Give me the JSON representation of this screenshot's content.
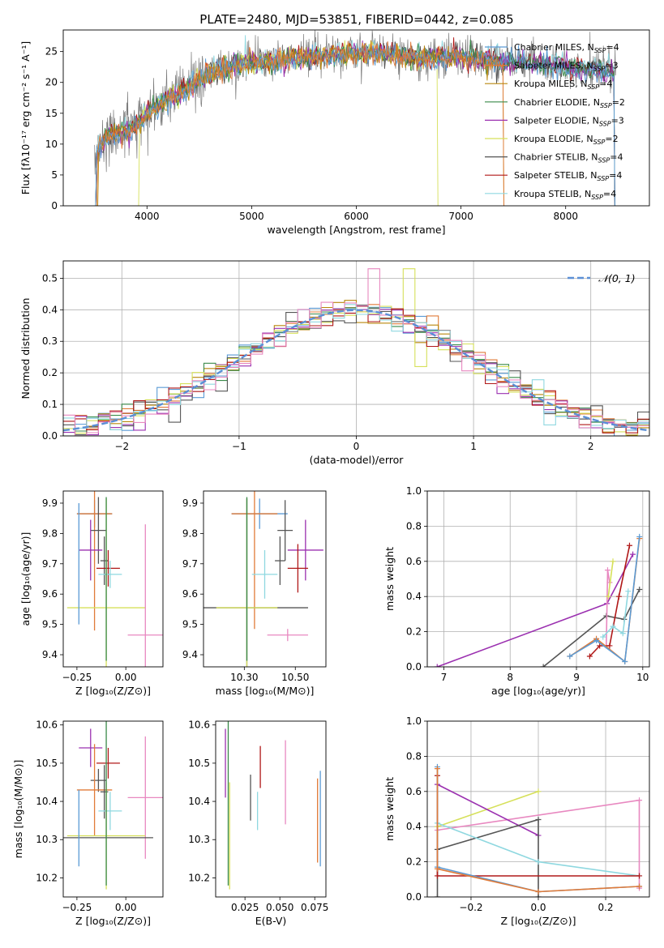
{
  "figure": {
    "title": "PLATE=2480, MJD=53851, FIBERID=0442, z=0.085"
  },
  "palette": {
    "Chabrier MILES": "#5b9bd5",
    "Salpeter MILES": "#e07b39",
    "Kroupa MILES": "#b8860b",
    "Chabrier ELODIE": "#3a8a4a",
    "Salpeter ELODIE": "#9b30b0",
    "Kroupa ELODIE": "#d6e05a",
    "Chabrier STELIB": "#555555",
    "Salpeter STELIB": "#b01818",
    "Kroupa STELIB": "#8fd8e0",
    "extra_pink": "#e888c0",
    "extra_orange": "#d2823a",
    "normal_curve": "#5b8fd5"
  },
  "chart_data": [
    {
      "id": "spectrum",
      "type": "line",
      "xlabel": "wavelength [Angstrom, rest frame]",
      "ylabel": "Flux [fλ10⁻¹⁷ erg cm⁻² s⁻¹ A⁻¹]",
      "xlim": [
        3200,
        8800
      ],
      "ylim": [
        0,
        28.5
      ],
      "xticks": [
        4000,
        5000,
        6000,
        7000,
        8000
      ],
      "yticks": [
        0,
        5,
        10,
        15,
        20,
        25
      ],
      "legend_position": "top-right",
      "continuum": {
        "x": [
          3500,
          3600,
          3700,
          3800,
          3900,
          4000,
          4100,
          4200,
          4300,
          4400,
          4500,
          4600,
          4700,
          4800,
          4900,
          5000,
          5200,
          5400,
          5600,
          5800,
          6000,
          6200,
          6400,
          6600,
          6800,
          7000,
          7200,
          7400,
          7600,
          7800,
          8000,
          8200,
          8400,
          8500
        ],
        "y": [
          8,
          11,
          12,
          12,
          13,
          15,
          16,
          17.5,
          18,
          19.5,
          20.5,
          21.5,
          22,
          22.5,
          23,
          23.2,
          23.5,
          24,
          24.3,
          24.6,
          24.8,
          24.7,
          24.5,
          24,
          24.2,
          24.3,
          23.8,
          23.5,
          23.2,
          23,
          22.7,
          22.3,
          21.8,
          21.5
        ]
      },
      "series": [
        {
          "name": "Chabrier MILES, N$_{SSP}$=4",
          "label_main": "Chabrier MILES, N",
          "label_sub": "SSP",
          "label_end": "=4"
        },
        {
          "name": "Salpeter MILES, N$_{SSP}$=3",
          "label_main": "Salpeter MILES, N",
          "label_sub": "SSP",
          "label_end": "=3"
        },
        {
          "name": "Kroupa MILES, N$_{SSP}$=4",
          "label_main": "Kroupa MILES, N",
          "label_sub": "SSP",
          "label_end": "=4"
        },
        {
          "name": "Chabrier ELODIE, N$_{SSP}$=2",
          "label_main": "Chabrier ELODIE, N",
          "label_sub": "SSP",
          "label_end": "=2"
        },
        {
          "name": "Salpeter ELODIE, N$_{SSP}$=3",
          "label_main": "Salpeter ELODIE, N",
          "label_sub": "SSP",
          "label_end": "=3"
        },
        {
          "name": "Kroupa ELODIE, N$_{SSP}$=2",
          "label_main": "Kroupa ELODIE, N",
          "label_sub": "SSP",
          "label_end": "=2"
        },
        {
          "name": "Chabrier STELIB, N$_{SSP}$=4",
          "label_main": "Chabrier STELIB, N",
          "label_sub": "SSP",
          "label_end": "=4"
        },
        {
          "name": "Salpeter STELIB, N$_{SSP}$=4",
          "label_main": "Salpeter STELIB, N",
          "label_sub": "SSP",
          "label_end": "=4"
        },
        {
          "name": "Kroupa STELIB, N$_{SSP}$=4",
          "label_main": "Kroupa STELIB, N",
          "label_sub": "SSP",
          "label_end": "=4"
        }
      ]
    },
    {
      "id": "residuals",
      "type": "histogram",
      "xlabel": "(data-model)/error",
      "ylabel": "Normed distribution",
      "xlim": [
        -2.5,
        2.5
      ],
      "ylim": [
        0,
        0.555
      ],
      "xticks": [
        -2,
        -1,
        0,
        1,
        2
      ],
      "yticks": [
        0.0,
        0.1,
        0.2,
        0.3,
        0.4,
        0.5
      ],
      "grid": true,
      "legend_position": "top-right",
      "legend_label": "𝒩(0, 1)",
      "bin_width": 0.1
    },
    {
      "id": "age_vs_Z",
      "type": "errorbar",
      "xlabel": "Z [log₁₀(Z/Z⊙)]",
      "ylabel": "age  [log₁₀(age/yr)]",
      "xlim": [
        -0.32,
        0.19
      ],
      "ylim": [
        9.36,
        9.94
      ],
      "xticks": [
        -0.25,
        0.0
      ],
      "yticks": [
        9.4,
        9.5,
        9.6,
        9.7,
        9.8,
        9.9
      ],
      "points": [
        {
          "color": "#5b9bd5",
          "x": -0.16,
          "xerr": 0.09,
          "y": 9.865,
          "yerr": 0.045
        },
        {
          "color": "#e07b39",
          "x": -0.16,
          "xerr": 0.09,
          "y": 9.865,
          "yerr": 0.385
        },
        {
          "color": "#555555",
          "x": -0.14,
          "xerr": 0.04,
          "y": 9.81,
          "yerr": 0.11
        },
        {
          "color": "#9b30b0",
          "x": -0.18,
          "xerr": 0.06,
          "y": 9.745,
          "yerr": 0.1
        },
        {
          "color": "#555555",
          "x": -0.11,
          "xerr": 0.02,
          "y": 9.71,
          "yerr": 0.08
        },
        {
          "color": "#b01818",
          "x": -0.09,
          "xerr": 0.06,
          "y": 9.685,
          "yerr": 0.06
        },
        {
          "color": "#8fd8e0",
          "x": -0.08,
          "xerr": 0.06,
          "y": 9.665,
          "yerr": 0.045
        },
        {
          "color": "#d6e05a",
          "x": -0.1,
          "xerr": 0.2,
          "y": 9.555,
          "yerr": 0.36
        },
        {
          "color": "#e888c0",
          "x": 0.1,
          "xerr": 0.09,
          "y": 9.465,
          "yerr": 0.365
        },
        {
          "color": "#3a8a4a",
          "x": -0.1,
          "xerr": 0.0,
          "y": 9.65,
          "yerr": 0.27
        },
        {
          "color": "#5b9bd5",
          "x": -0.24,
          "xerr": 0.0,
          "y": 9.7,
          "yerr": 0.2
        }
      ]
    },
    {
      "id": "age_vs_mass",
      "type": "errorbar",
      "xlabel": "mass [log₁₀(M/M⊙)]",
      "xlim": [
        10.14,
        10.62
      ],
      "ylim": [
        9.36,
        9.94
      ],
      "xticks": [
        10.3,
        10.5
      ],
      "yticks": [
        9.4,
        9.5,
        9.6,
        9.7,
        9.8,
        9.9
      ],
      "points": [
        {
          "color": "#5b9bd5",
          "x": 10.36,
          "xerr": 0.11,
          "y": 9.865,
          "yerr": 0.05
        },
        {
          "color": "#e07b39",
          "x": 10.34,
          "xerr": 0.09,
          "y": 9.865,
          "yerr": 0.38
        },
        {
          "color": "#555555",
          "x": 10.46,
          "xerr": 0.03,
          "y": 9.81,
          "yerr": 0.1
        },
        {
          "color": "#9b30b0",
          "x": 10.54,
          "xerr": 0.07,
          "y": 9.745,
          "yerr": 0.1
        },
        {
          "color": "#555555",
          "x": 10.44,
          "xerr": 0.02,
          "y": 9.71,
          "yerr": 0.08
        },
        {
          "color": "#b01818",
          "x": 10.51,
          "xerr": 0.04,
          "y": 9.685,
          "yerr": 0.08
        },
        {
          "color": "#8fd8e0",
          "x": 10.38,
          "xerr": 0.05,
          "y": 9.665,
          "yerr": 0.08
        },
        {
          "color": "#555555",
          "x": 10.31,
          "xerr": 0.24,
          "y": 9.555,
          "yerr": 0.36
        },
        {
          "color": "#d6e05a",
          "x": 10.31,
          "xerr": 0.12,
          "y": 9.555,
          "yerr": 0.36
        },
        {
          "color": "#e888c0",
          "x": 10.47,
          "xerr": 0.08,
          "y": 9.465,
          "yerr": 0.02
        },
        {
          "color": "#3a8a4a",
          "x": 10.31,
          "xerr": 0.0,
          "y": 9.65,
          "yerr": 0.27
        }
      ]
    },
    {
      "id": "weight_vs_age",
      "type": "line",
      "xlabel": "age  [log₁₀(age/yr)]",
      "ylabel": "mass weight",
      "xlim": [
        6.75,
        10.1
      ],
      "ylim": [
        0,
        1.0
      ],
      "xticks": [
        7,
        8,
        9,
        10
      ],
      "yticks": [
        0.0,
        0.2,
        0.4,
        0.6,
        0.8,
        1.0
      ],
      "grid": true,
      "series": [
        {
          "color": "#9b30b0",
          "x": [
            6.9,
            9.46,
            9.85
          ],
          "y": [
            0.0,
            0.36,
            0.64
          ]
        },
        {
          "color": "#555555",
          "x": [
            8.5,
            9.45,
            9.72,
            9.95
          ],
          "y": [
            0.0,
            0.29,
            0.27,
            0.44
          ]
        },
        {
          "color": "#e888c0",
          "x": [
            9.45,
            9.47,
            9.5
          ],
          "y": [
            0.12,
            0.55,
            0.48
          ]
        },
        {
          "color": "#d6e05a",
          "x": [
            9.48,
            9.55
          ],
          "y": [
            0.4,
            0.6
          ]
        },
        {
          "color": "#b01818",
          "x": [
            9.2,
            9.35,
            9.5,
            9.64,
            9.8
          ],
          "y": [
            0.06,
            0.12,
            0.12,
            0.4,
            0.69
          ]
        },
        {
          "color": "#8fd8e0",
          "x": [
            9.4,
            9.55,
            9.7,
            9.78
          ],
          "y": [
            0.17,
            0.23,
            0.19,
            0.43
          ]
        },
        {
          "color": "#e07b39",
          "x": [
            8.9,
            9.3,
            9.73,
            9.95
          ],
          "y": [
            0.06,
            0.16,
            0.03,
            0.73
          ]
        },
        {
          "color": "#5b9bd5",
          "x": [
            8.9,
            9.3,
            9.73,
            9.95
          ],
          "y": [
            0.06,
            0.15,
            0.03,
            0.74
          ]
        }
      ]
    },
    {
      "id": "mass_vs_Z",
      "type": "errorbar",
      "xlabel": "Z [log₁₀(Z/Z⊙)]",
      "ylabel": "mass [log₁₀(M/M⊙)]",
      "xlim": [
        -0.32,
        0.19
      ],
      "ylim": [
        10.15,
        10.61
      ],
      "xticks": [
        -0.25,
        0.0
      ],
      "yticks": [
        10.2,
        10.3,
        10.4,
        10.5,
        10.6
      ],
      "points": [
        {
          "color": "#9b30b0",
          "x": -0.18,
          "xerr": 0.06,
          "y": 10.54,
          "yerr": 0.05
        },
        {
          "color": "#b01818",
          "x": -0.09,
          "xerr": 0.06,
          "y": 10.5,
          "yerr": 0.04
        },
        {
          "color": "#555555",
          "x": -0.14,
          "xerr": 0.04,
          "y": 10.455,
          "yerr": 0.03
        },
        {
          "color": "#e07b39",
          "x": -0.16,
          "xerr": 0.09,
          "y": 10.43,
          "yerr": 0.12
        },
        {
          "color": "#555555",
          "x": -0.11,
          "xerr": 0.02,
          "y": 10.425,
          "yerr": 0.07
        },
        {
          "color": "#e888c0",
          "x": 0.1,
          "xerr": 0.09,
          "y": 10.41,
          "yerr": 0.16
        },
        {
          "color": "#8fd8e0",
          "x": -0.08,
          "xerr": 0.06,
          "y": 10.375,
          "yerr": 0.05
        },
        {
          "color": "#d6e05a",
          "x": -0.1,
          "xerr": 0.2,
          "y": 10.31,
          "yerr": 0.14
        },
        {
          "color": "#555555",
          "x": -0.1,
          "xerr": 0.24,
          "y": 10.305,
          "yerr": 0.0
        },
        {
          "color": "#5b9bd5",
          "x": -0.24,
          "xerr": 0.0,
          "y": 10.33,
          "yerr": 0.1
        },
        {
          "color": "#3a8a4a",
          "x": -0.1,
          "xerr": 0.0,
          "y": 10.4,
          "yerr": 0.22
        }
      ]
    },
    {
      "id": "mass_vs_ebv",
      "type": "errorbar",
      "xlabel": "E(B-V)",
      "xlim": [
        0.004,
        0.083
      ],
      "ylim": [
        10.15,
        10.61
      ],
      "xticks": [
        0.025,
        0.05,
        0.075
      ],
      "yticks": [
        10.2,
        10.3,
        10.4,
        10.5,
        10.6
      ],
      "points": [
        {
          "color": "#9b30b0",
          "x": 0.011,
          "y": 10.5,
          "yerr": 0.09
        },
        {
          "color": "#3a8a4a",
          "x": 0.013,
          "y": 10.4,
          "yerr": 0.22
        },
        {
          "color": "#d6e05a",
          "x": 0.014,
          "y": 10.31,
          "yerr": 0.14
        },
        {
          "color": "#555555",
          "x": 0.029,
          "y": 10.41,
          "yerr": 0.06
        },
        {
          "color": "#8fd8e0",
          "x": 0.034,
          "y": 10.375,
          "yerr": 0.05
        },
        {
          "color": "#b01818",
          "x": 0.036,
          "y": 10.49,
          "yerr": 0.055
        },
        {
          "color": "#e888c0",
          "x": 0.054,
          "y": 10.45,
          "yerr": 0.11
        },
        {
          "color": "#e07b39",
          "x": 0.077,
          "y": 10.35,
          "yerr": 0.11
        },
        {
          "color": "#5b9bd5",
          "x": 0.079,
          "y": 10.355,
          "yerr": 0.125
        }
      ]
    },
    {
      "id": "weight_vs_Z",
      "type": "line",
      "xlabel": "Z [log₁₀(Z/Z⊙)]",
      "ylabel": "mass weight",
      "xlim": [
        -0.33,
        0.33
      ],
      "ylim": [
        0,
        1.0
      ],
      "xticks": [
        -0.2,
        0.0,
        0.2
      ],
      "yticks": [
        0.0,
        0.2,
        0.4,
        0.6,
        0.8,
        1.0
      ],
      "grid": true,
      "series": [
        {
          "color": "#e888c0",
          "x": [
            -0.3,
            0.3,
            0.3
          ],
          "y": [
            0.38,
            0.55,
            0.05
          ]
        },
        {
          "color": "#d6e05a",
          "x": [
            -0.3,
            0.0
          ],
          "y": [
            0.4,
            0.6
          ]
        },
        {
          "color": "#9b30b0",
          "x": [
            -0.3,
            0.0
          ],
          "y": [
            0.64,
            0.35
          ]
        },
        {
          "color": "#555555",
          "x": [
            -0.3,
            -0.3,
            0.0,
            0.0
          ],
          "y": [
            0.0,
            0.27,
            0.44,
            0.0
          ]
        },
        {
          "color": "#8fd8e0",
          "x": [
            -0.3,
            0.0,
            0.3
          ],
          "y": [
            0.42,
            0.2,
            0.12
          ]
        },
        {
          "color": "#b01818",
          "x": [
            -0.3,
            -0.3,
            0.3
          ],
          "y": [
            0.69,
            0.12,
            0.12
          ]
        },
        {
          "color": "#5b9bd5",
          "x": [
            -0.3,
            -0.3,
            0.0,
            0.3
          ],
          "y": [
            0.74,
            0.17,
            0.03,
            0.06
          ]
        },
        {
          "color": "#e07b39",
          "x": [
            -0.3,
            -0.3,
            0.0,
            0.3
          ],
          "y": [
            0.73,
            0.16,
            0.03,
            0.06
          ]
        }
      ]
    }
  ]
}
